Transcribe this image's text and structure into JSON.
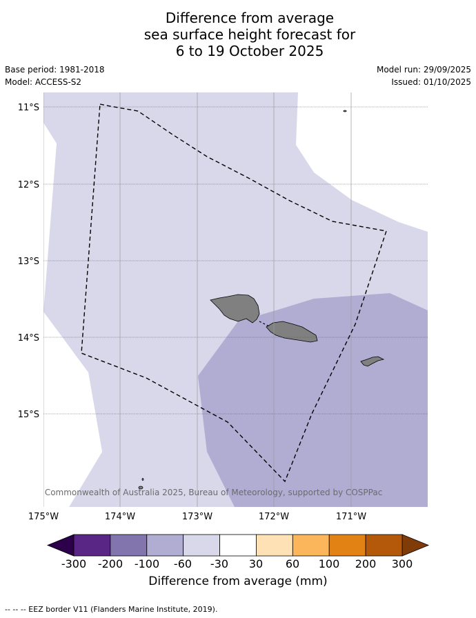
{
  "title": {
    "line1": "Difference from average",
    "line2": "sea surface height forecast for",
    "line3": "6 to 19 October 2025"
  },
  "meta": {
    "base_period": "Base period: 1981-2018",
    "model": "Model: ACCESS-S2",
    "model_run": "Model run: 29/09/2025",
    "issued": "Issued: 01/10/2025"
  },
  "map": {
    "lon_range": [
      -175,
      -170
    ],
    "lat_range": [
      -16.2,
      -10.8
    ],
    "lat_ticks": [
      "11°S",
      "12°S",
      "13°S",
      "14°S",
      "15°S"
    ],
    "lon_ticks": [
      "175°W",
      "174°W",
      "173°W",
      "172°W",
      "171°W"
    ],
    "copyright": "© Commonwealth of Australia 2025, Bureau of Meteorology, supported by COSPPac",
    "fill_light": "#d8d8ea",
    "fill_medium": "#b1acd2",
    "land_color": "#808080",
    "eez_label_color": "#000000"
  },
  "colorbar": {
    "ticks": [
      "-300",
      "-200",
      "-100",
      "-60",
      "-30",
      "30",
      "60",
      "100",
      "200",
      "300"
    ],
    "colors": [
      "#592685",
      "#8274ad",
      "#b1acd2",
      "#d8d8ea",
      "#ffffff",
      "#fee1b5",
      "#fbb55b",
      "#e28214",
      "#b35909"
    ],
    "under_color": "#2d004b",
    "over_color": "#7f3b08",
    "label": "Difference from average (mm)"
  },
  "footer": {
    "legend": "--  --  -- EEZ border V11 (Flanders Marine Institute, 2019)."
  }
}
